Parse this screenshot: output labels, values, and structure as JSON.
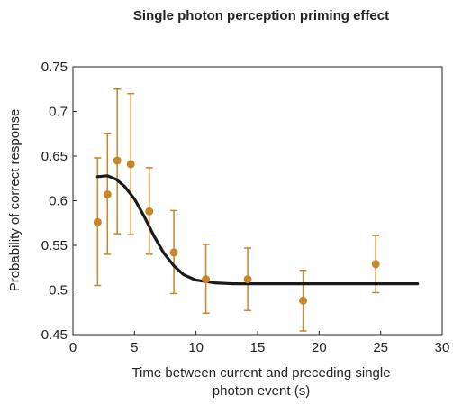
{
  "chart_data": {
    "type": "scatter",
    "title": "Single photon perception priming effect",
    "xlabel_lines": [
      "Time between current and preceding single",
      "photon event (s)"
    ],
    "ylabel": "Probability of correct response",
    "xlim": [
      0,
      30
    ],
    "ylim": [
      0.45,
      0.75
    ],
    "x_ticks": [
      0,
      5,
      10,
      15,
      20,
      25,
      30
    ],
    "y_ticks": [
      0.45,
      0.5,
      0.55,
      0.6,
      0.65,
      0.7,
      0.75
    ],
    "x_tick_labels": [
      "0",
      "5",
      "10",
      "15",
      "20",
      "25",
      "30"
    ],
    "y_tick_labels": [
      "0.45",
      "0.5",
      "0.55",
      "0.6",
      "0.65",
      "0.7",
      "0.75"
    ],
    "grid": false,
    "points": [
      {
        "x": 2.0,
        "y": 0.576,
        "err_low": 0.505,
        "err_high": 0.648
      },
      {
        "x": 2.8,
        "y": 0.607,
        "err_low": 0.54,
        "err_high": 0.675
      },
      {
        "x": 3.6,
        "y": 0.645,
        "err_low": 0.563,
        "err_high": 0.725
      },
      {
        "x": 4.7,
        "y": 0.641,
        "err_low": 0.562,
        "err_high": 0.72
      },
      {
        "x": 6.2,
        "y": 0.588,
        "err_low": 0.54,
        "err_high": 0.637
      },
      {
        "x": 8.2,
        "y": 0.542,
        "err_low": 0.496,
        "err_high": 0.589
      },
      {
        "x": 10.8,
        "y": 0.512,
        "err_low": 0.474,
        "err_high": 0.551
      },
      {
        "x": 14.2,
        "y": 0.512,
        "err_low": 0.477,
        "err_high": 0.547
      },
      {
        "x": 18.7,
        "y": 0.488,
        "err_low": 0.454,
        "err_high": 0.522
      },
      {
        "x": 24.6,
        "y": 0.529,
        "err_low": 0.497,
        "err_high": 0.561
      }
    ],
    "fit_curve": [
      {
        "x": 2.0,
        "y": 0.627
      },
      {
        "x": 2.8,
        "y": 0.628
      },
      {
        "x": 3.5,
        "y": 0.624
      },
      {
        "x": 4.2,
        "y": 0.616
      },
      {
        "x": 5.0,
        "y": 0.602
      },
      {
        "x": 5.8,
        "y": 0.582
      },
      {
        "x": 6.6,
        "y": 0.56
      },
      {
        "x": 7.4,
        "y": 0.541
      },
      {
        "x": 8.2,
        "y": 0.527
      },
      {
        "x": 9.0,
        "y": 0.517
      },
      {
        "x": 10.0,
        "y": 0.511
      },
      {
        "x": 11.5,
        "y": 0.508
      },
      {
        "x": 13.0,
        "y": 0.507
      },
      {
        "x": 16.0,
        "y": 0.507
      },
      {
        "x": 20.0,
        "y": 0.507
      },
      {
        "x": 24.0,
        "y": 0.507
      },
      {
        "x": 28.0,
        "y": 0.507
      }
    ],
    "colors": {
      "points": "#c8862a",
      "fit": "#1a1a1a",
      "axis": "#222222"
    }
  }
}
